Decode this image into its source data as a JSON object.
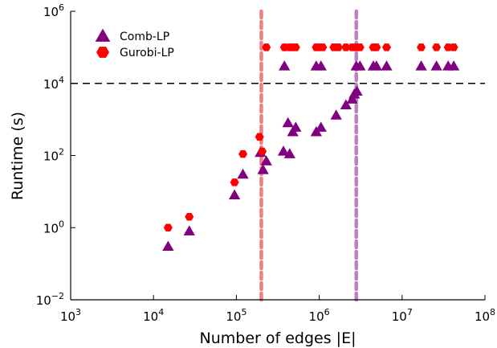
{
  "chart_data": {
    "type": "scatter",
    "xlabel": "Number of edges |E|",
    "ylabel": "Runtime (s)",
    "x_scale": "log",
    "y_scale": "log",
    "xlim": [
      1000,
      100000000
    ],
    "ylim": [
      0.01,
      1000000
    ],
    "x_ticks": [
      {
        "base": "10",
        "exp": "3",
        "value": 1000
      },
      {
        "base": "10",
        "exp": "4",
        "value": 10000
      },
      {
        "base": "10",
        "exp": "5",
        "value": 100000
      },
      {
        "base": "10",
        "exp": "6",
        "value": 1000000
      },
      {
        "base": "10",
        "exp": "7",
        "value": 10000000
      },
      {
        "base": "10",
        "exp": "8",
        "value": 100000000
      }
    ],
    "y_ticks": [
      {
        "base": "10",
        "exp": "−2",
        "value": 0.01
      },
      {
        "base": "10",
        "exp": "0",
        "value": 1
      },
      {
        "base": "10",
        "exp": "2",
        "value": 100
      },
      {
        "base": "10",
        "exp": "4",
        "value": 10000
      },
      {
        "base": "10",
        "exp": "6",
        "value": 1000000
      }
    ],
    "grid": false,
    "legend_position": "top-left",
    "reference_lines": [
      {
        "orientation": "horizontal",
        "value": 10000,
        "style": "dashed",
        "color": "#000000"
      },
      {
        "orientation": "vertical",
        "value": 200000,
        "style": "dotted",
        "color": "#f08080"
      },
      {
        "orientation": "vertical",
        "value": 2800000,
        "style": "dotted",
        "color": "#bf80bf"
      }
    ],
    "series": [
      {
        "name": "Comb-LP",
        "marker": "triangle",
        "color": "#800080",
        "points": [
          {
            "x": 15000,
            "y": 0.3
          },
          {
            "x": 27000,
            "y": 0.8
          },
          {
            "x": 95000,
            "y": 8
          },
          {
            "x": 120000,
            "y": 30
          },
          {
            "x": 195000,
            "y": 120
          },
          {
            "x": 210000,
            "y": 40
          },
          {
            "x": 230000,
            "y": 70
          },
          {
            "x": 370000,
            "y": 130
          },
          {
            "x": 420000,
            "y": 800
          },
          {
            "x": 440000,
            "y": 110
          },
          {
            "x": 480000,
            "y": 450
          },
          {
            "x": 520000,
            "y": 600
          },
          {
            "x": 920000,
            "y": 450
          },
          {
            "x": 1050000,
            "y": 600
          },
          {
            "x": 1600000,
            "y": 1300
          },
          {
            "x": 2100000,
            "y": 2500
          },
          {
            "x": 2500000,
            "y": 3600
          },
          {
            "x": 2650000,
            "y": 5000
          },
          {
            "x": 2850000,
            "y": 6000
          },
          {
            "x": 380000,
            "y": 30000
          },
          {
            "x": 920000,
            "y": 30000
          },
          {
            "x": 1050000,
            "y": 30000
          },
          {
            "x": 2800000,
            "y": 30000
          },
          {
            "x": 3100000,
            "y": 30000
          },
          {
            "x": 4500000,
            "y": 30000
          },
          {
            "x": 4900000,
            "y": 30000
          },
          {
            "x": 6500000,
            "y": 30000
          },
          {
            "x": 17000000,
            "y": 30000
          },
          {
            "x": 26000000,
            "y": 30000
          },
          {
            "x": 36000000,
            "y": 30000
          },
          {
            "x": 42000000,
            "y": 30000
          }
        ]
      },
      {
        "name": "Gurobi-LP",
        "marker": "hexagon",
        "color": "#ff0000",
        "points": [
          {
            "x": 15000,
            "y": 1
          },
          {
            "x": 27000,
            "y": 2
          },
          {
            "x": 95000,
            "y": 18
          },
          {
            "x": 120000,
            "y": 110
          },
          {
            "x": 190000,
            "y": 330
          },
          {
            "x": 205000,
            "y": 130
          },
          {
            "x": 230000,
            "y": 100000
          },
          {
            "x": 380000,
            "y": 100000
          },
          {
            "x": 440000,
            "y": 100000
          },
          {
            "x": 480000,
            "y": 100000
          },
          {
            "x": 520000,
            "y": 100000
          },
          {
            "x": 920000,
            "y": 100000
          },
          {
            "x": 1000000,
            "y": 100000
          },
          {
            "x": 1100000,
            "y": 100000
          },
          {
            "x": 1500000,
            "y": 100000
          },
          {
            "x": 1700000,
            "y": 100000
          },
          {
            "x": 2100000,
            "y": 100000
          },
          {
            "x": 2500000,
            "y": 100000
          },
          {
            "x": 2800000,
            "y": 100000
          },
          {
            "x": 3100000,
            "y": 100000
          },
          {
            "x": 4500000,
            "y": 100000
          },
          {
            "x": 4900000,
            "y": 100000
          },
          {
            "x": 6500000,
            "y": 100000
          },
          {
            "x": 17000000,
            "y": 100000
          },
          {
            "x": 26000000,
            "y": 100000
          },
          {
            "x": 36000000,
            "y": 100000
          },
          {
            "x": 42000000,
            "y": 100000
          }
        ]
      }
    ]
  }
}
